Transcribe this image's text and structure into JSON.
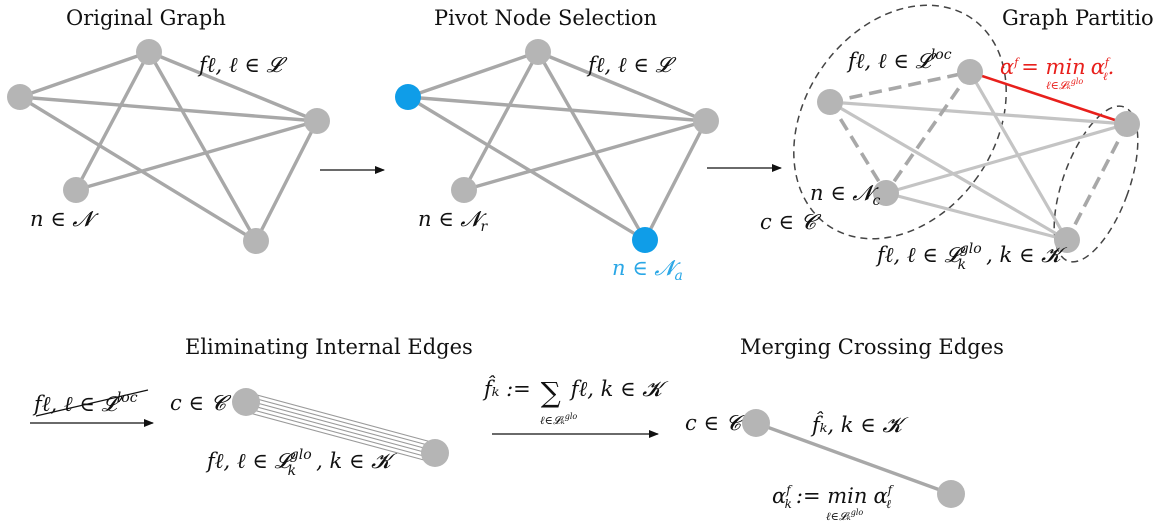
{
  "panels": {
    "original_graph": {
      "title": "Original Graph",
      "edge_label": "fℓ, ℓ ∈ 𝓛",
      "node_label": "n ∈ 𝓝"
    },
    "pivot_selection": {
      "title": "Pivot Node Selection",
      "edge_label": "fℓ, ℓ ∈ 𝓛",
      "regular_node_label_main": "n ∈ 𝓝",
      "regular_node_label_sub": "r",
      "pivot_node_label_main": "n ∈ 𝓝",
      "pivot_node_label_sub": "a",
      "pivot_color": "#0f9de8"
    },
    "graph_partition": {
      "title": "Graph Partition",
      "local_edge_label_main": "fℓ, ℓ ∈ 𝓛",
      "local_edge_label_sup": "loc",
      "alpha_left": "α",
      "alpha_left_sup": "f",
      "alpha_eq": "= min",
      "alpha_min_sub": "ℓ∈𝓛ₖ",
      "alpha_min_sub_sup": "glo",
      "alpha_right": "α",
      "alpha_right_sup": "f",
      "alpha_right_sub": "ℓ",
      "alpha_dot": ".",
      "alpha_color": "#e8201c",
      "node_label_main": "n ∈ 𝓝",
      "node_label_sub": "c",
      "cluster_label": "c ∈ 𝓒",
      "global_edge_label_main": "fℓ, ℓ ∈ 𝓛",
      "global_edge_label_sup": "glo",
      "global_edge_label_sub": "k",
      "global_edge_label_tail": ", k ∈ 𝓚"
    },
    "eliminating": {
      "title": "Eliminating Internal Edges",
      "arrow_label_main": "fℓ, ℓ ∈ 𝓛",
      "arrow_label_sup": "loc",
      "cluster_label": "c ∈ 𝓒",
      "edge_label_main": "fℓ, ℓ ∈ 𝓛",
      "edge_label_sup": "glo",
      "edge_label_sub": "k",
      "edge_label_tail": ", k ∈ 𝓚"
    },
    "merging": {
      "title": "Merging Crossing Edges",
      "formula_head": "f̂ₖ :=",
      "formula_sum": "∑",
      "formula_tail": "fℓ, k ∈ 𝓚",
      "formula_sub": "ℓ∈𝓛ₖ",
      "formula_sub_sup": "glo",
      "cluster_label": "c ∈ 𝓒",
      "edge_label": "f̂ₖ, k ∈ 𝓚",
      "alpha_head": "α",
      "alpha_head_sup": "f",
      "alpha_head_sub": "k",
      "alpha_eq": ":= min",
      "alpha_sub": "ℓ∈𝓛ₖ",
      "alpha_sub_sup": "glo",
      "alpha_tail": "α",
      "alpha_tail_sup": "f",
      "alpha_tail_sub": "ℓ"
    }
  }
}
